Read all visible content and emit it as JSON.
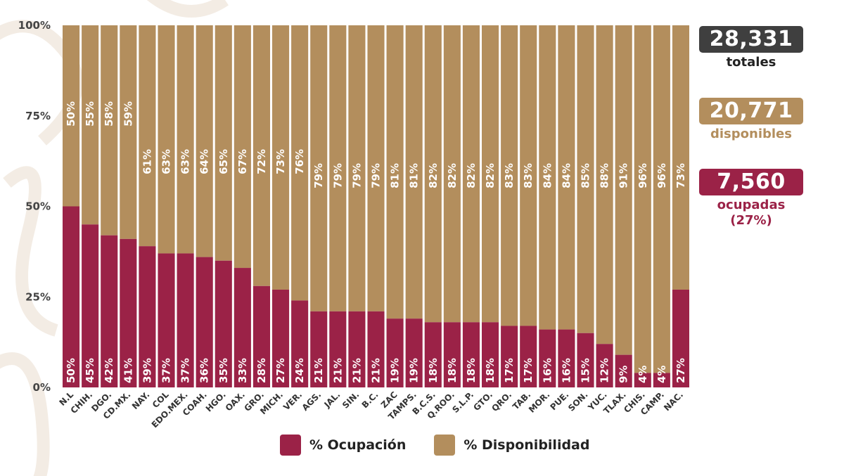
{
  "colors": {
    "ocupacion": "#9b2247",
    "disponibilidad": "#b38e5d",
    "totales_box": "#3f3f3f",
    "axis_text": "#444444",
    "caption_dark": "#222222"
  },
  "chart_data": {
    "type": "bar",
    "stacked": true,
    "categories": [
      "N.L",
      "CHIH.",
      "DGO.",
      "CD.MX.",
      "NAY.",
      "COL",
      "EDO.MEX.",
      "COAH.",
      "HGO.",
      "OAX.",
      "GRO.",
      "MICH.",
      "VER.",
      "AGS.",
      "JAL.",
      "SIN.",
      "B.C.",
      "ZAC",
      "TAMPS.",
      "B.C.S.",
      "Q.ROO.",
      "S.L.P.",
      "GTO.",
      "QRO.",
      "TAB.",
      "MOR.",
      "PUE.",
      "SON.",
      "YUC.",
      "TLAX.",
      "CHIS.",
      "CAMP.",
      "NAC."
    ],
    "series": [
      {
        "name": "% Ocupación",
        "values": [
          50,
          45,
          42,
          41,
          39,
          37,
          37,
          36,
          35,
          33,
          28,
          27,
          24,
          21,
          21,
          21,
          21,
          19,
          19,
          18,
          18,
          18,
          18,
          17,
          17,
          16,
          16,
          15,
          12,
          9,
          4,
          4,
          27
        ]
      },
      {
        "name": "% Disponibilidad",
        "values": [
          50,
          55,
          58,
          59,
          61,
          63,
          63,
          64,
          65,
          67,
          72,
          73,
          76,
          79,
          79,
          79,
          79,
          81,
          81,
          82,
          82,
          82,
          82,
          83,
          83,
          84,
          84,
          85,
          88,
          91,
          96,
          96,
          73
        ]
      }
    ],
    "yticks": [
      "0%",
      "25%",
      "50%",
      "75%",
      "100%"
    ],
    "ylim": [
      0,
      100
    ],
    "grid": false,
    "legend_position": "bottom"
  },
  "stats": {
    "totales": {
      "value": "28,331",
      "label": "totales"
    },
    "disponibles": {
      "value": "20,771",
      "label": "disponibles"
    },
    "ocupadas": {
      "value": "7,560",
      "label": "ocupadas",
      "pct": "(27%)"
    }
  },
  "legend": {
    "ocupacion": "% Ocupación",
    "disponibilidad": "% Disponibilidad"
  }
}
